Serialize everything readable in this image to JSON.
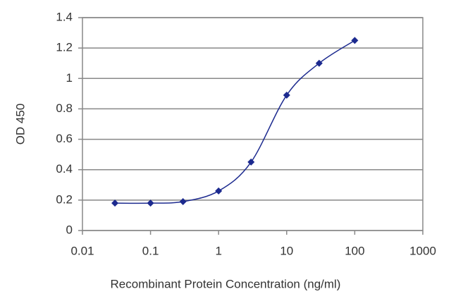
{
  "chart_data": {
    "type": "scatter",
    "x_label": "Recombinant Protein Concentration (ng/ml)",
    "y_label": "OD 450",
    "x": [
      0.03,
      0.1,
      0.3,
      1,
      3,
      10,
      30,
      100
    ],
    "series": [
      {
        "color": "#1c2a8f",
        "values": [
          0.18,
          0.18,
          0.19,
          0.26,
          0.45,
          0.89,
          1.1,
          1.25
        ]
      }
    ],
    "xlim": [
      0.01,
      1000
    ],
    "xticks": [
      0.01,
      0.1,
      1,
      10,
      100,
      1000
    ],
    "x_log": true,
    "ylim": [
      0,
      1.4
    ],
    "yticks": [
      0,
      0.2,
      0.4,
      0.6,
      0.8,
      1,
      1.2,
      1.4
    ],
    "grid": true,
    "smooth_line": true
  }
}
